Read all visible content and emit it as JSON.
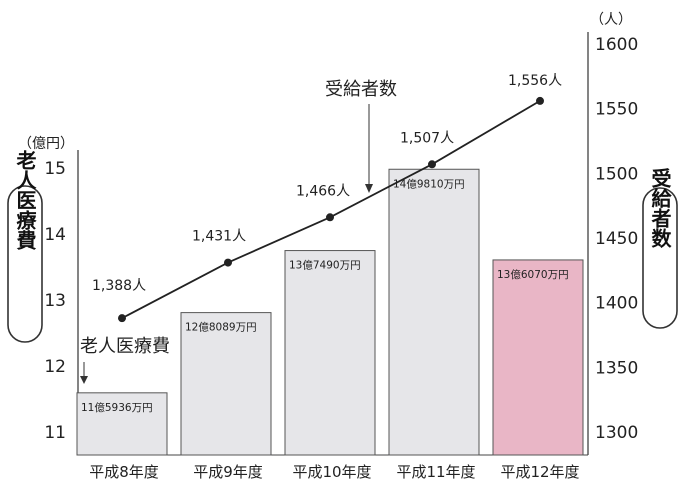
{
  "chart_data": {
    "type": "bar",
    "categories": [
      "平成8年度",
      "平成9年度",
      "平成10年度",
      "平成11年度",
      "平成12年度"
    ],
    "bar_series": {
      "name": "老人医療費",
      "unit": "億円",
      "values": [
        11.5936,
        12.8089,
        13.749,
        14.981,
        13.607
      ],
      "value_labels": [
        "11億5936万円",
        "12億8089万円",
        "13億7490万円",
        "14億9810万円",
        "13億6070万円"
      ],
      "colors": [
        "#e6e6e9",
        "#e6e6e9",
        "#e6e6e9",
        "#e6e6e9",
        "#e9b6c6"
      ]
    },
    "line_series": {
      "name": "受給者数",
      "unit": "人",
      "values": [
        1388,
        1431,
        1466,
        1507,
        1556
      ],
      "value_labels": [
        "1,388人",
        "1,431人",
        "1,466人",
        "1,507人",
        "1,556人"
      ]
    },
    "left_axis": {
      "title": "老人医療費",
      "unit_label": "（億円）",
      "ticks": [
        "11",
        "12",
        "13",
        "14",
        "15"
      ],
      "ylim": [
        10.55,
        15.1
      ]
    },
    "right_axis": {
      "title": "受給者数",
      "unit_label": "（人）",
      "ticks": [
        "1300",
        "1350",
        "1400",
        "1450",
        "1500",
        "1550",
        "1600"
      ],
      "ylim": [
        1280,
        1600
      ]
    },
    "annotations": {
      "bar_callout": "老人医療費",
      "line_callout": "受給者数"
    },
    "colors": {
      "line": "#222222",
      "bar_stroke": "#555555",
      "pill_stroke": "#333333"
    }
  }
}
